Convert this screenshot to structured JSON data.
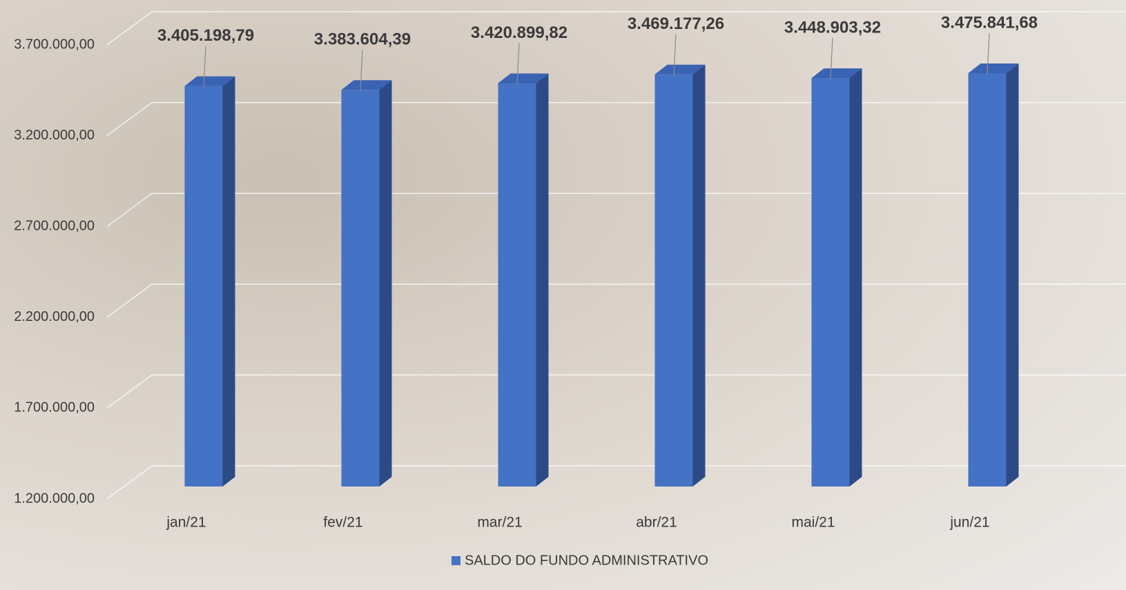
{
  "chart_data": {
    "type": "bar3d",
    "categories": [
      "jan/21",
      "fev/21",
      "mar/21",
      "abr/21",
      "mai/21",
      "jun/21"
    ],
    "series": [
      {
        "name": "SALDO DO FUNDO ADMINISTRATIVO",
        "color": "#4472c4",
        "values": [
          3405198.79,
          3383604.39,
          3420899.82,
          3469177.26,
          3448903.32,
          3475841.68
        ],
        "value_labels": [
          "3.405.198,79",
          "3.383.604,39",
          "3.420.899,82",
          "3.469.177,26",
          "3.448.903,32",
          "3.475.841,68"
        ]
      }
    ],
    "ylim": [
      1200000,
      3700000
    ],
    "yticks": [
      {
        "value": 1200000,
        "label": "1.200.000,00"
      },
      {
        "value": 1700000,
        "label": "1.700.000,00"
      },
      {
        "value": 2200000,
        "label": "2.200.000,00"
      },
      {
        "value": 2700000,
        "label": "2.700.000,00"
      },
      {
        "value": 3200000,
        "label": "3.200.000,00"
      },
      {
        "value": 3700000,
        "label": "3.700.000,00"
      }
    ],
    "grid": true,
    "legend": "bottom"
  }
}
